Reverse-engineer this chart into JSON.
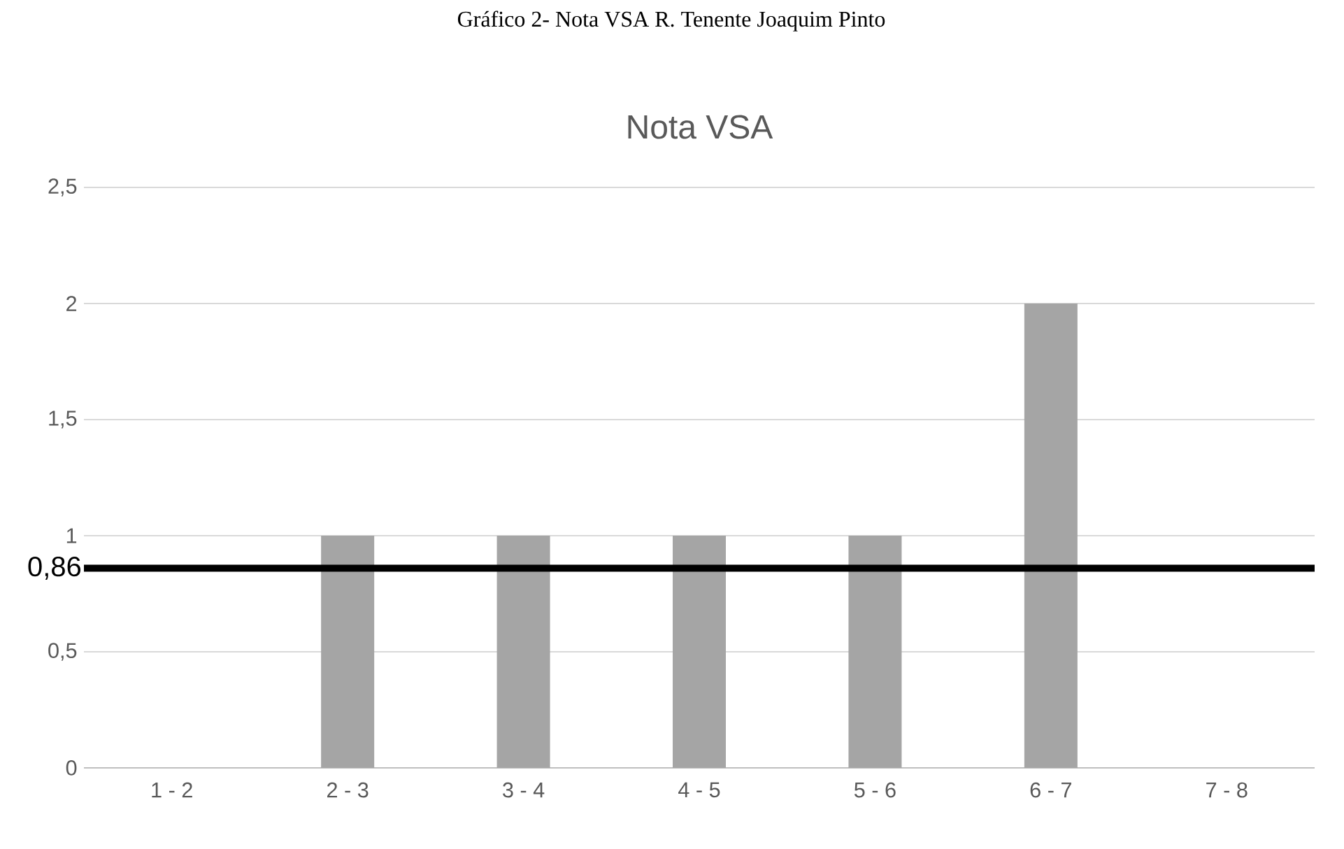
{
  "chart_data": {
    "type": "bar",
    "title": "Nota VSA",
    "annotations": [
      "Gráfico 2- Nota VSA R. Tenente Joaquim Pinto"
    ],
    "categories": [
      "1 - 2",
      "2 - 3",
      "3 - 4",
      "4 - 5",
      "5 - 6",
      "6 - 7",
      "7 - 8"
    ],
    "values": [
      0,
      1,
      1,
      1,
      1,
      2,
      0
    ],
    "color": "#a5a5a5",
    "ylim": [
      0,
      2.5
    ],
    "yticks": [
      0,
      {
        "value": 0.5,
        "label": "0,5"
      },
      1,
      {
        "value": 1.5,
        "label": "1,5"
      },
      2,
      {
        "value": 2.5,
        "label": "2,5"
      }
    ],
    "grid": "y",
    "ref_lines": [
      {
        "axis": "y",
        "value": 0.86,
        "label": "0,86",
        "color": "#000000"
      }
    ]
  }
}
